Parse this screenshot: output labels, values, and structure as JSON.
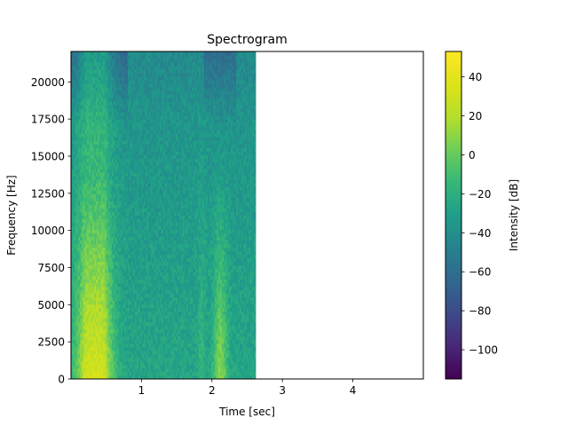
{
  "chart_data": {
    "type": "heatmap",
    "title": "Spectrogram",
    "xlabel": "Time [sec]",
    "ylabel": "Frequency [Hz]",
    "colorbar_label": "Intensity [dB]",
    "xlim": [
      0,
      5
    ],
    "ylim": [
      0,
      22050
    ],
    "x_ticks": [
      1,
      2,
      3,
      4
    ],
    "x_tick_labels": [
      "1",
      "2",
      "3",
      "4"
    ],
    "y_ticks": [
      0,
      2500,
      5000,
      7500,
      10000,
      12500,
      15000,
      17500,
      20000
    ],
    "y_tick_labels": [
      "0",
      "2500",
      "5000",
      "7500",
      "10000",
      "12500",
      "15000",
      "17500",
      "20000"
    ],
    "colorbar_range": [
      -115,
      53
    ],
    "colorbar_ticks": [
      40,
      20,
      0,
      -20,
      -40,
      -60,
      -80,
      -100
    ],
    "colorbar_tick_labels": [
      "40",
      "20",
      "0",
      "−20",
      "−40",
      "−60",
      "−80",
      "−100"
    ],
    "colormap": "viridis",
    "data_time_range": [
      0,
      2.62
    ],
    "grid": false,
    "colorbar_position": "right"
  }
}
